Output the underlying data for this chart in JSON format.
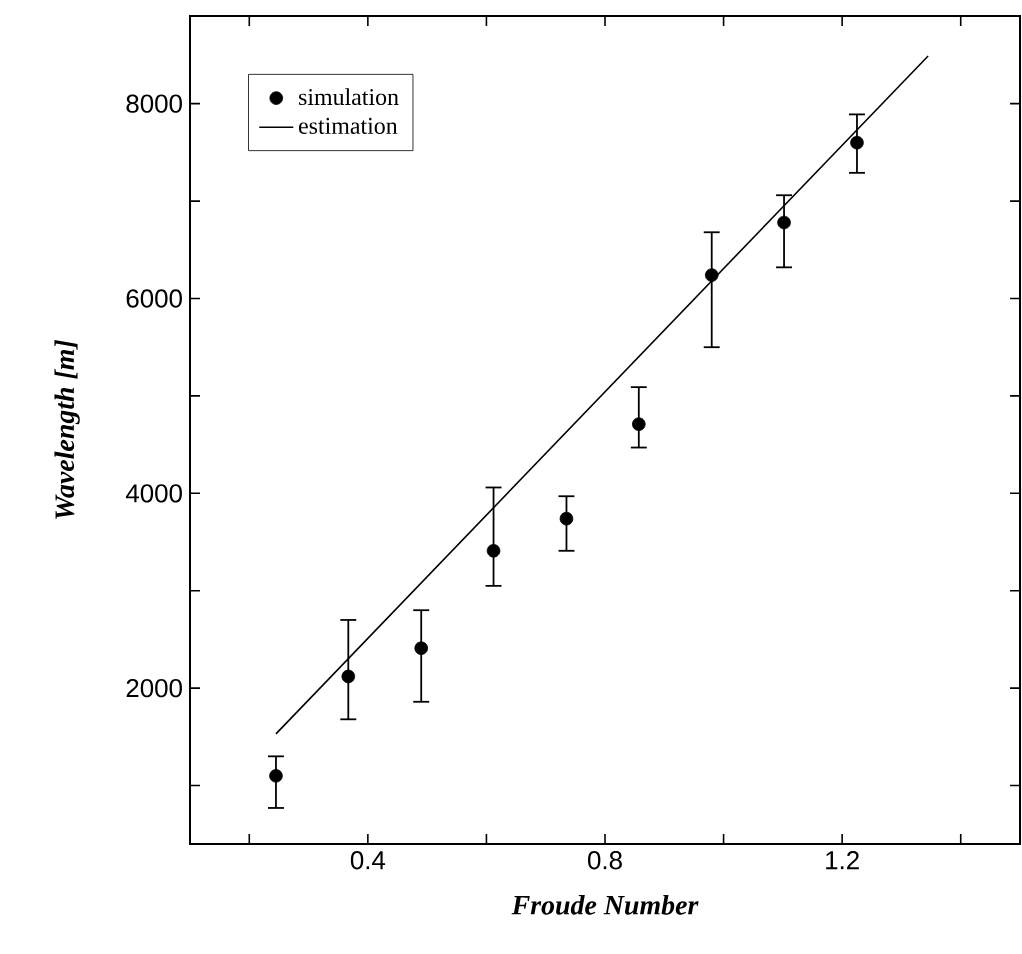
{
  "chart_data": {
    "type": "scatter",
    "xlabel": "Froude Number",
    "ylabel": "Wavelength [m]",
    "xlim": [
      0.1,
      1.5
    ],
    "ylim": [
      400,
      8900
    ],
    "xticks": [
      {
        "value": 0.2,
        "label": null
      },
      0.4,
      {
        "value": 0.6,
        "label": null
      },
      0.8,
      {
        "value": 1.0,
        "label": null
      },
      1.2,
      {
        "value": 1.4,
        "label": null
      }
    ],
    "yticks": [
      {
        "value": 1000,
        "label": null
      },
      2000,
      {
        "value": 3000,
        "label": null
      },
      4000,
      {
        "value": 5000,
        "label": null
      },
      6000,
      {
        "value": 7000,
        "label": null
      },
      8000
    ],
    "legend": "top left",
    "series": [
      {
        "name": "simulation",
        "marker": "circle",
        "color": "#000000",
        "x": [
          0.245,
          0.367,
          0.49,
          0.612,
          0.735,
          0.857,
          0.98,
          1.102,
          1.225
        ],
        "values": [
          1100,
          2120,
          2410,
          3410,
          3740,
          4710,
          6240,
          6780,
          7600
        ],
        "errors": [
          [
            770,
            1300
          ],
          [
            1680,
            2700
          ],
          [
            1860,
            2800
          ],
          [
            3050,
            4060
          ],
          [
            3410,
            3970
          ],
          [
            4470,
            5090
          ],
          [
            5500,
            6680
          ],
          [
            6320,
            7060
          ],
          [
            7290,
            7890
          ]
        ]
      },
      {
        "name": "estimation",
        "type": "line",
        "marker": "none",
        "color": "#000000",
        "x": [
          0.245,
          1.345
        ],
        "values": [
          1530,
          8490
        ]
      }
    ]
  }
}
